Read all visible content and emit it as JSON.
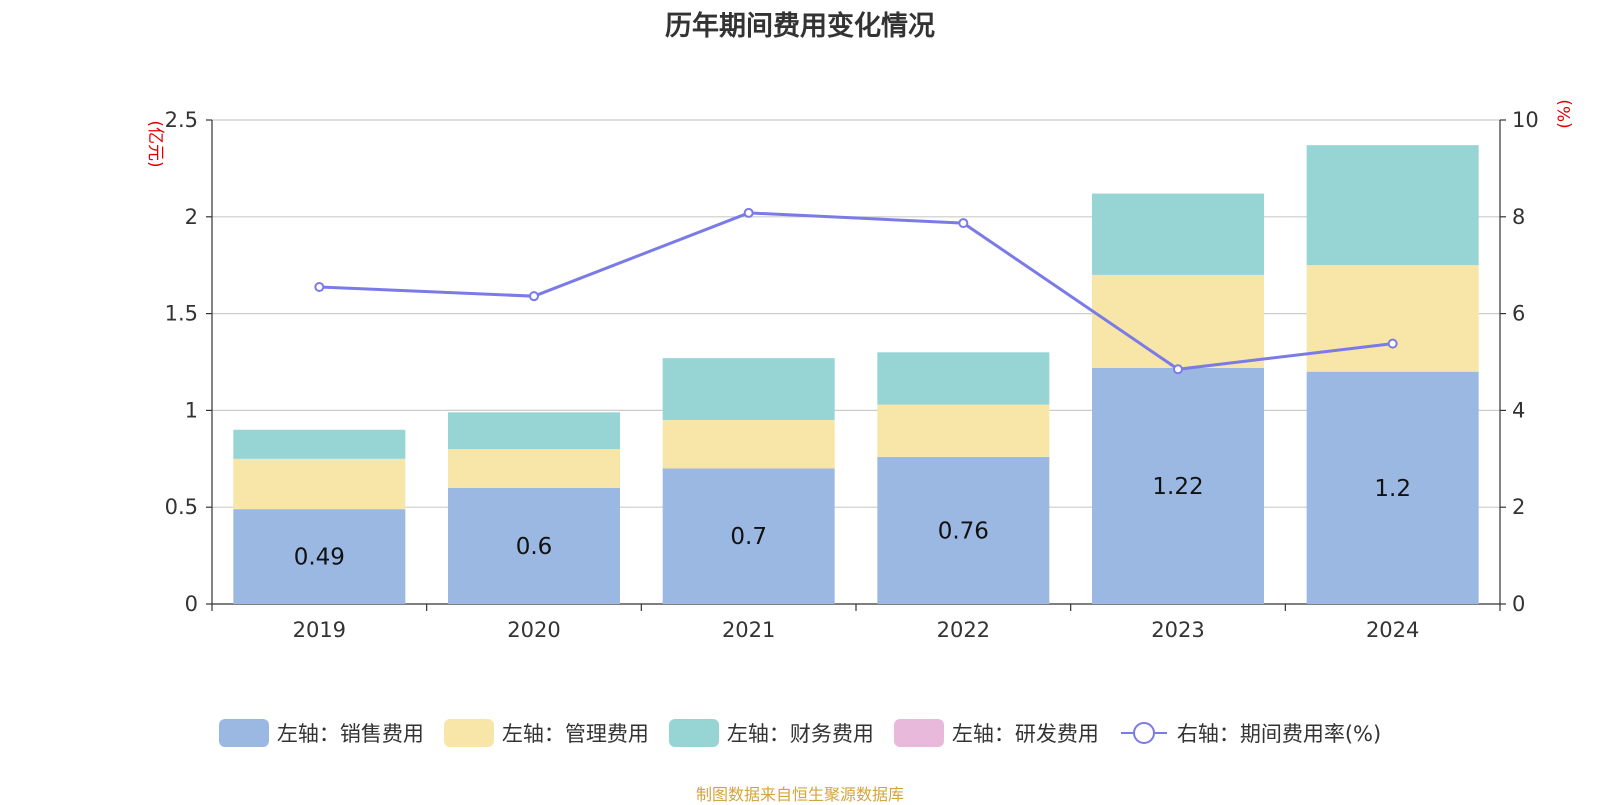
{
  "chart_data": {
    "type": "bar",
    "title": "历年期间费用变化情况",
    "categories": [
      "2019",
      "2020",
      "2021",
      "2022",
      "2023",
      "2024"
    ],
    "left_axis": {
      "unit": "(亿元)",
      "ylim": [
        0,
        2.5
      ],
      "ticks": [
        "0",
        "0.5",
        "1",
        "1.5",
        "2",
        "2.5"
      ]
    },
    "right_axis": {
      "unit": "(%)",
      "ylim": [
        0,
        10
      ],
      "ticks": [
        "0",
        "2",
        "4",
        "6",
        "8",
        "10"
      ]
    },
    "series": [
      {
        "name": "左轴：销售费用",
        "kind": "bar",
        "color": "#9bb8e2",
        "values": [
          0.49,
          0.6,
          0.7,
          0.76,
          1.22,
          1.2
        ],
        "labels": [
          "0.49",
          "0.6",
          "0.7",
          "0.76",
          "1.22",
          "1.2"
        ]
      },
      {
        "name": "左轴：管理费用",
        "kind": "bar",
        "color": "#f7e6a8",
        "values": [
          0.26,
          0.2,
          0.25,
          0.27,
          0.48,
          0.55
        ]
      },
      {
        "name": "左轴：财务费用",
        "kind": "bar",
        "color": "#97d4d4",
        "values": [
          0.15,
          0.19,
          0.32,
          0.27,
          0.42,
          0.62
        ]
      },
      {
        "name": "左轴：研发费用",
        "kind": "bar",
        "color": "#e8b9db",
        "values": [
          0,
          0,
          0,
          0,
          0,
          0
        ]
      },
      {
        "name": "右轴：期间费用率(%)",
        "kind": "line",
        "color": "#7b7be8",
        "values": [
          6.55,
          6.36,
          8.08,
          7.87,
          4.85,
          5.38
        ]
      }
    ],
    "grid": true,
    "legend_position": "bottom"
  },
  "footer": "制图数据来自恒生聚源数据库"
}
